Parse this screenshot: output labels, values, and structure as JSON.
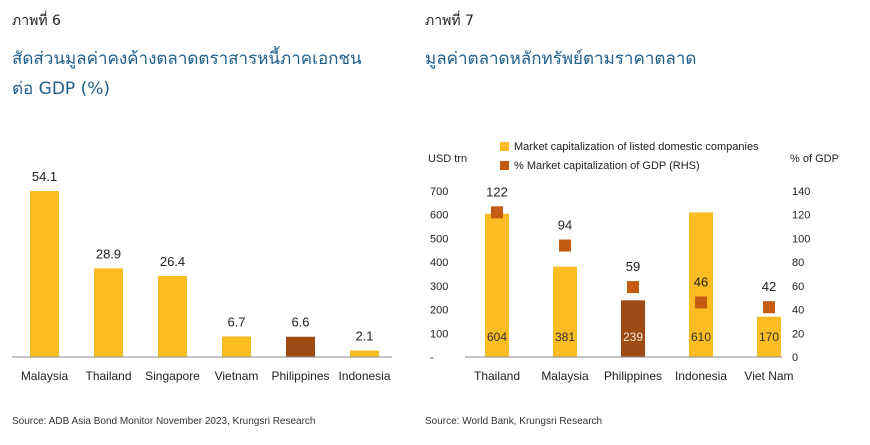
{
  "left": {
    "figure_label": "ภาพที่ 6",
    "title_line1": "สัดส่วนมูลค่าคงค้างตลาดตราสารหนี้ภาคเอกชน",
    "title_line2": "ต่อ GDP (%)",
    "source": "Source: ADB Asia Bond Monitor November 2023, Krungsri Research"
  },
  "right": {
    "figure_label": "ภาพที่ 7",
    "title": "มูลค่าตลาดหลักทรัพย์ตามราคาตลาด",
    "source": "Source: World Bank, Krungsri Research",
    "left_axis_unit": "USD trn",
    "right_axis_unit": "% of GDP"
  },
  "colors": {
    "bar_yellow": "#FBBC24",
    "bar_brown": "#9E4A14",
    "marker_orange": "#C55A11",
    "title_blue": "#1F5F8B"
  },
  "chart_data": [
    {
      "type": "bar",
      "categories": [
        "Malaysia",
        "Thailand",
        "Singapore",
        "Vietnam",
        "Philippines",
        "Indonesia"
      ],
      "values": [
        54.1,
        28.9,
        26.4,
        6.7,
        6.6,
        2.1
      ],
      "value_labels": [
        "54.1",
        "28.9",
        "26.4",
        "6.7",
        "6.6",
        "2.1"
      ],
      "highlight_category": "Philippines",
      "ylim": [
        0,
        54.1
      ]
    },
    {
      "type": "bar",
      "categories": [
        "Thailand",
        "Malaysia",
        "Philippines",
        "Indonesia",
        "Viet Nam"
      ],
      "series": [
        {
          "name": "Market capitalization of listed domestic companies",
          "axis": "left",
          "values": [
            604,
            381,
            239,
            610,
            170
          ],
          "value_labels": [
            "604",
            "381",
            "239",
            "610",
            "170"
          ]
        },
        {
          "name": "% Market capitalization of GDP (RHS)",
          "axis": "right",
          "type": "scatter",
          "values": [
            122,
            94,
            59,
            46,
            42
          ],
          "value_labels": [
            "122",
            "94",
            "59",
            "46",
            "42"
          ]
        }
      ],
      "highlight_category": "Philippines",
      "y_left": {
        "ylim": [
          0,
          700
        ],
        "ticks": [
          "-",
          "100",
          "200",
          "300",
          "400",
          "500",
          "600",
          "700"
        ]
      },
      "y_right": {
        "ylim": [
          0,
          140
        ],
        "ticks": [
          "0",
          "20",
          "40",
          "60",
          "80",
          "100",
          "120",
          "140"
        ]
      },
      "legend_position": "top"
    }
  ]
}
